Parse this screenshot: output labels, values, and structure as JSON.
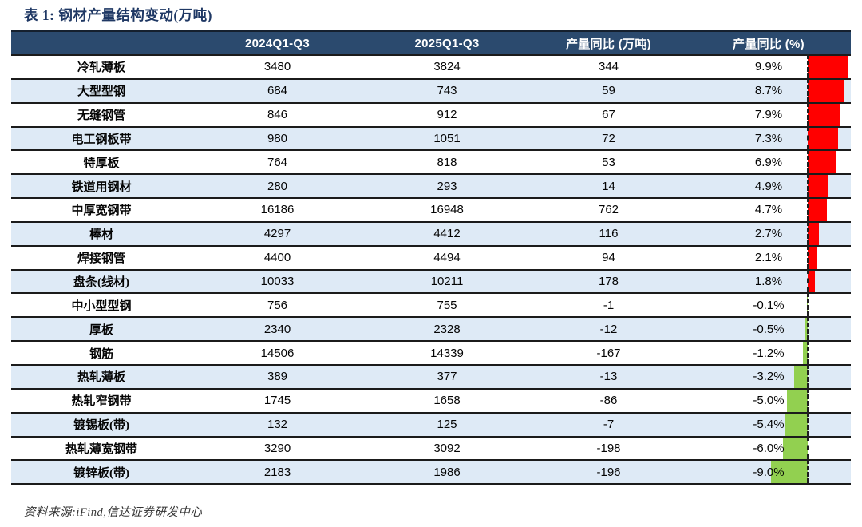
{
  "title": "表 1: 钢材产量结构变动(万吨)",
  "footer": "资料来源:iFind,信达证券研发中心",
  "colors": {
    "header_bg": "#2B4A6E",
    "row_alt_bg": "#DEEAF6",
    "title_color": "#1F3864",
    "positive_bar": "#FF0000",
    "negative_bar": "#92D050"
  },
  "chart_data": {
    "type": "table",
    "title": "表 1: 钢材产量结构变动(万吨)",
    "columns": [
      "",
      "2024Q1-Q3",
      "2025Q1-Q3",
      "产量同比 (万吨)",
      "产量同比 (%)"
    ],
    "bar_column": {
      "bound_to": "产量同比 (%)",
      "zero_axis": "dashed-vertical-line",
      "positive_color": "#FF0000",
      "negative_color": "#92D050",
      "value_range_pct": [
        -9.0,
        9.9
      ]
    },
    "rows": [
      {
        "label": "冷轧薄板",
        "v2024": "3480",
        "v2025": "3824",
        "yoy": "344",
        "pct": "9.9%",
        "pct_value": 9.9
      },
      {
        "label": "大型型钢",
        "v2024": "684",
        "v2025": "743",
        "yoy": "59",
        "pct": "8.7%",
        "pct_value": 8.7
      },
      {
        "label": "无缝钢管",
        "v2024": "846",
        "v2025": "912",
        "yoy": "67",
        "pct": "7.9%",
        "pct_value": 7.9
      },
      {
        "label": "电工钢板带",
        "v2024": "980",
        "v2025": "1051",
        "yoy": "72",
        "pct": "7.3%",
        "pct_value": 7.3
      },
      {
        "label": "特厚板",
        "v2024": "764",
        "v2025": "818",
        "yoy": "53",
        "pct": "6.9%",
        "pct_value": 6.9
      },
      {
        "label": "铁道用钢材",
        "v2024": "280",
        "v2025": "293",
        "yoy": "14",
        "pct": "4.9%",
        "pct_value": 4.9
      },
      {
        "label": "中厚宽钢带",
        "v2024": "16186",
        "v2025": "16948",
        "yoy": "762",
        "pct": "4.7%",
        "pct_value": 4.7
      },
      {
        "label": "棒材",
        "v2024": "4297",
        "v2025": "4412",
        "yoy": "116",
        "pct": "2.7%",
        "pct_value": 2.7
      },
      {
        "label": "焊接钢管",
        "v2024": "4400",
        "v2025": "4494",
        "yoy": "94",
        "pct": "2.1%",
        "pct_value": 2.1
      },
      {
        "label": "盘条(线材)",
        "v2024": "10033",
        "v2025": "10211",
        "yoy": "178",
        "pct": "1.8%",
        "pct_value": 1.8
      },
      {
        "label": "中小型型钢",
        "v2024": "756",
        "v2025": "755",
        "yoy": "-1",
        "pct": "-0.1%",
        "pct_value": -0.1
      },
      {
        "label": "厚板",
        "v2024": "2340",
        "v2025": "2328",
        "yoy": "-12",
        "pct": "-0.5%",
        "pct_value": -0.5
      },
      {
        "label": "钢筋",
        "v2024": "14506",
        "v2025": "14339",
        "yoy": "-167",
        "pct": "-1.2%",
        "pct_value": -1.2
      },
      {
        "label": "热轧薄板",
        "v2024": "389",
        "v2025": "377",
        "yoy": "-13",
        "pct": "-3.2%",
        "pct_value": -3.2
      },
      {
        "label": "热轧窄钢带",
        "v2024": "1745",
        "v2025": "1658",
        "yoy": "-86",
        "pct": "-5.0%",
        "pct_value": -5.0
      },
      {
        "label": "镀锡板(带)",
        "v2024": "132",
        "v2025": "125",
        "yoy": "-7",
        "pct": "-5.4%",
        "pct_value": -5.4
      },
      {
        "label": "热轧薄宽钢带",
        "v2024": "3290",
        "v2025": "3092",
        "yoy": "-198",
        "pct": "-6.0%",
        "pct_value": -6.0
      },
      {
        "label": "镀锌板(带)",
        "v2024": "2183",
        "v2025": "1986",
        "yoy": "-196",
        "pct": "-9.0%",
        "pct_value": -9.0
      }
    ]
  }
}
